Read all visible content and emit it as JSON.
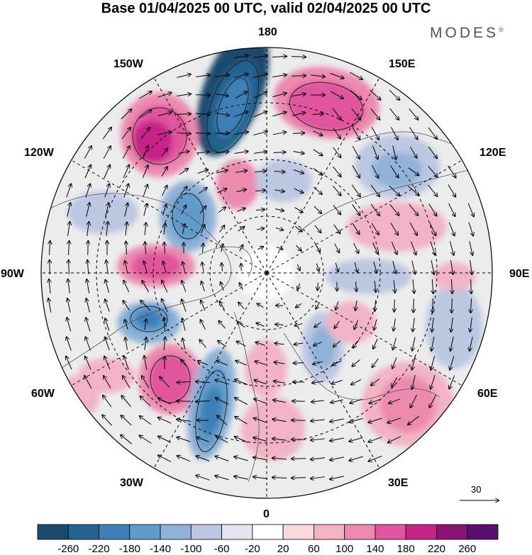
{
  "title": "Base 01/04/2025 00 UTC, valid 02/04/2025 00 UTC",
  "brand": "MODES",
  "brand_mark": "®",
  "lon_labels": {
    "top": "180",
    "bottom": "0",
    "left": "90W",
    "right": "90E",
    "upper_left_1": "150W",
    "upper_left_2": "120W",
    "upper_right_1": "150E",
    "upper_right_2": "120E",
    "lower_left_1": "60W",
    "lower_left_2": "30W",
    "lower_right_1": "60E",
    "lower_right_2": "30E"
  },
  "reference_vector": {
    "label": "30"
  },
  "colorbar": {
    "ticks": [
      "-260",
      "-220",
      "-180",
      "-140",
      "-100",
      "-60",
      "-20",
      "20",
      "60",
      "100",
      "140",
      "180",
      "220",
      "260"
    ],
    "colors": [
      "#1c4a6e",
      "#24628f",
      "#3d80b8",
      "#609bcb",
      "#8fb2d8",
      "#bcc8e2",
      "#e4e4f1",
      "#ffffff",
      "#f9d9dd",
      "#f2b4c4",
      "#ec8ab0",
      "#e0559d",
      "#c62487",
      "#8a1378",
      "#5a0e6e"
    ]
  }
}
